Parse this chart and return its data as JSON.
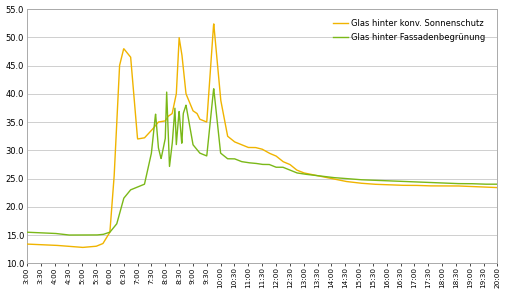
{
  "ylim": [
    10,
    55
  ],
  "yticks": [
    10.0,
    15.0,
    20.0,
    25.0,
    30.0,
    35.0,
    40.0,
    45.0,
    50.0,
    55.0
  ],
  "x_labels": [
    "3:00",
    "3:30",
    "4:00",
    "4:30",
    "5:00",
    "5:30",
    "6:00",
    "6:30",
    "7:00",
    "7:30",
    "8:00",
    "8:30",
    "9:00",
    "9:30",
    "10:00",
    "10:30",
    "11:00",
    "11:30",
    "12:00",
    "12:30",
    "13:00",
    "13:30",
    "14:00",
    "14:30",
    "15:00",
    "15:30",
    "16:00",
    "16:30",
    "17:00",
    "17:30",
    "18:00",
    "18:30",
    "19:00",
    "19:30",
    "20:00"
  ],
  "color_yellow": "#f0b400",
  "color_green": "#7ab818",
  "legend_label_yellow": "Glas hinter konv. Sonnenschutz",
  "legend_label_green": "Glas hinter Fassadenbegrünung",
  "background_color": "#ffffff",
  "grid_color": "#c8c8c8",
  "border_color": "#aaaaaa",
  "yellow_keypoints_x": [
    0,
    1,
    2,
    3,
    4,
    5,
    5.5,
    6,
    6.3,
    6.7,
    7,
    7.5,
    8,
    8.5,
    9,
    9.5,
    10,
    10.2,
    10.5,
    10.8,
    11,
    11.2,
    11.5,
    12,
    12.3,
    12.5,
    13,
    13.5,
    14,
    14.5,
    15,
    15.5,
    16,
    16.5,
    17,
    17.5,
    18,
    18.5,
    19,
    19.5,
    20,
    21,
    22,
    23,
    24,
    25,
    26,
    27,
    28,
    29,
    30,
    31,
    32,
    33,
    34
  ],
  "yellow_keypoints_y": [
    13.4,
    13.3,
    13.2,
    13.0,
    12.8,
    13.0,
    13.5,
    15.5,
    25.0,
    45.0,
    48.0,
    46.5,
    32.0,
    32.2,
    33.5,
    35.0,
    35.2,
    36.0,
    36.5,
    40.0,
    50.0,
    47.0,
    40.0,
    37.0,
    36.5,
    35.5,
    35.0,
    52.5,
    39.0,
    32.5,
    31.5,
    31.0,
    30.5,
    30.5,
    30.2,
    29.5,
    29.0,
    28.0,
    27.5,
    26.5,
    26.0,
    25.5,
    25.0,
    24.5,
    24.2,
    24.0,
    23.9,
    23.8,
    23.8,
    23.7,
    23.7,
    23.7,
    23.6,
    23.5,
    23.4
  ],
  "green_keypoints_x": [
    0,
    1,
    2,
    3,
    4,
    5,
    5.5,
    6,
    6.5,
    7,
    7.5,
    8,
    8.5,
    9,
    9.3,
    9.5,
    9.7,
    10,
    10.1,
    10.2,
    10.3,
    10.5,
    10.7,
    10.8,
    11,
    11.2,
    11.3,
    11.5,
    12,
    12.5,
    13,
    13.5,
    14,
    14.5,
    15,
    15.5,
    16,
    16.5,
    17,
    17.5,
    18,
    18.5,
    19,
    19.5,
    20,
    21,
    22,
    23,
    24,
    25,
    26,
    27,
    28,
    29,
    30,
    31,
    32,
    33,
    34
  ],
  "green_keypoints_y": [
    15.5,
    15.4,
    15.3,
    15.0,
    15.0,
    15.0,
    15.1,
    15.5,
    17.0,
    21.5,
    23.0,
    23.5,
    24.0,
    29.5,
    36.5,
    30.5,
    28.5,
    32.0,
    40.5,
    34.0,
    27.0,
    31.0,
    37.5,
    31.0,
    37.0,
    31.0,
    36.5,
    38.0,
    31.0,
    29.5,
    29.0,
    41.0,
    29.5,
    28.5,
    28.5,
    28.0,
    27.8,
    27.7,
    27.5,
    27.5,
    27.0,
    27.0,
    26.5,
    26.0,
    25.8,
    25.5,
    25.2,
    25.0,
    24.8,
    24.7,
    24.6,
    24.5,
    24.4,
    24.3,
    24.2,
    24.1,
    24.1,
    24.0,
    24.0
  ]
}
